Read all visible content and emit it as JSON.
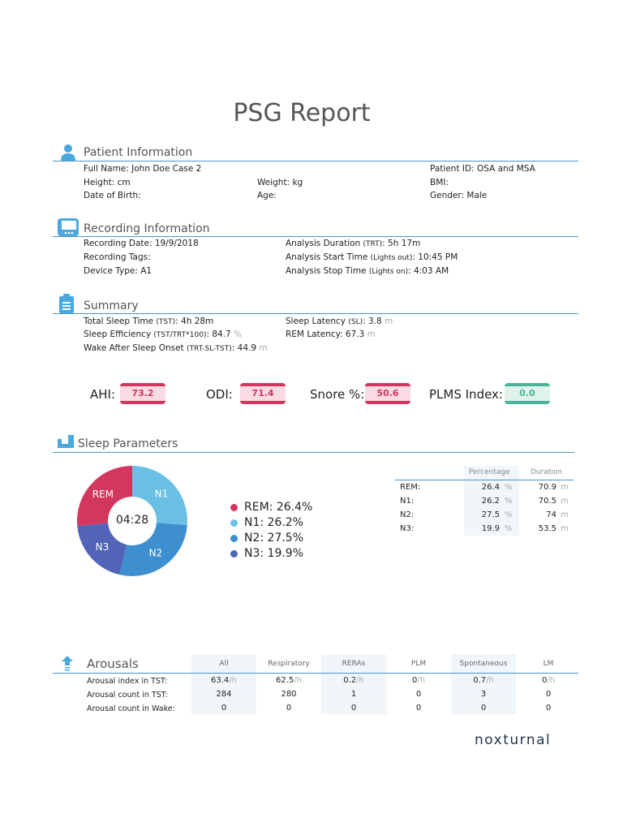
{
  "title": "PSG Report",
  "patient": {
    "heading": "Patient Information",
    "full_name": "Full Name: John Doe Case 2",
    "patient_id": "Patient ID: OSA and MSA",
    "height": "Height:  cm",
    "weight": "Weight:  kg",
    "bmi": "BMI:",
    "dob": "Date of Birth:",
    "age": "Age:",
    "gender": "Gender: Male"
  },
  "recording": {
    "heading": "Recording Information",
    "date": "Recording Date: 19/9/2018",
    "tags": "Recording Tags:",
    "device": "Device Type: A1",
    "duration_label": "Analysis Duration ",
    "duration_qual": "(TRT)",
    "duration_value": ": 5h 17m",
    "start_label": "Analysis Start Time ",
    "start_qual": "(Lights out)",
    "start_value": ": 10:45 PM",
    "stop_label": "Analysis Stop Time ",
    "stop_qual": "(Lights on)",
    "stop_value": ": 4:03 AM"
  },
  "summary": {
    "heading": "Summary",
    "tst_label": "Total Sleep Time ",
    "tst_qual": "(TST)",
    "tst_value": ": 4h 28m",
    "se_label": "Sleep Efficiency ",
    "se_qual": "(TST/TRT*100)",
    "se_value": ": 84.7 ",
    "se_unit": "%",
    "waso_label": "Wake After Sleep Onset ",
    "waso_qual": "(TRT-SL-TST)",
    "waso_value": ": 44.9 ",
    "waso_unit": "m",
    "sl_label": "Sleep Latency ",
    "sl_qual": "(SL)",
    "sl_value": ": 3.8 ",
    "sl_unit": "m",
    "rem_label": "REM Latency: 67.3 ",
    "rem_unit": "m"
  },
  "indices": [
    {
      "label": "AHI:",
      "value": "73.2",
      "status": "bad"
    },
    {
      "label": "ODI:",
      "value": "71.4",
      "status": "bad"
    },
    {
      "label": "Snore %:",
      "value": "50.6",
      "status": "bad"
    },
    {
      "label": "PLMS Index:",
      "value": "0.0",
      "status": "good"
    }
  ],
  "colors": {
    "accent": "#4b93c7",
    "bad": "#d0375d",
    "good": "#4bb399",
    "REM": "#d4375e",
    "N1": "#6ac0e4",
    "N2": "#3e8fcf",
    "N3": "#5164b8"
  },
  "sleep": {
    "heading": "Sleep Parameters",
    "center": "04:28",
    "slices": [
      {
        "stage": "N1",
        "pct": 26.2
      },
      {
        "stage": "N2",
        "pct": 27.5
      },
      {
        "stage": "N3",
        "pct": 19.9
      },
      {
        "stage": "REM",
        "pct": 26.4
      }
    ],
    "legend": [
      "REM: 26.4%",
      "N1: 26.2%",
      "N2: 27.5%",
      "N3: 19.9%"
    ],
    "table": {
      "headers": [
        "Percentage",
        "Duration"
      ],
      "rows": [
        {
          "stage": "REM:",
          "pct": "26.4",
          "pct_unit": "%",
          "dur": "70.9",
          "dur_unit": "m"
        },
        {
          "stage": "N1:",
          "pct": "26.2",
          "pct_unit": "%",
          "dur": "70.5",
          "dur_unit": "m"
        },
        {
          "stage": "N2:",
          "pct": "27.5",
          "pct_unit": "%",
          "dur": "74",
          "dur_unit": "m"
        },
        {
          "stage": "N3:",
          "pct": "19.9",
          "pct_unit": "%",
          "dur": "53.5",
          "dur_unit": "m"
        }
      ]
    }
  },
  "arousals": {
    "heading": "Arousals",
    "columns": [
      "All",
      "Respiratory",
      "RERAs",
      "PLM",
      "Spontaneous",
      "LM"
    ],
    "rows": [
      {
        "label": "Arousal index in TST:",
        "values": [
          "63.4",
          "62.5",
          "0.2",
          "0",
          "0.7",
          "0"
        ],
        "unit": "/h"
      },
      {
        "label": "Arousal count in TST:",
        "values": [
          "284",
          "280",
          "1",
          "0",
          "3",
          "0"
        ],
        "unit": ""
      },
      {
        "label": "Arousal count in Wake:",
        "values": [
          "0",
          "0",
          "0",
          "0",
          "0",
          "0"
        ],
        "unit": ""
      }
    ]
  },
  "brand": "noxturnal"
}
